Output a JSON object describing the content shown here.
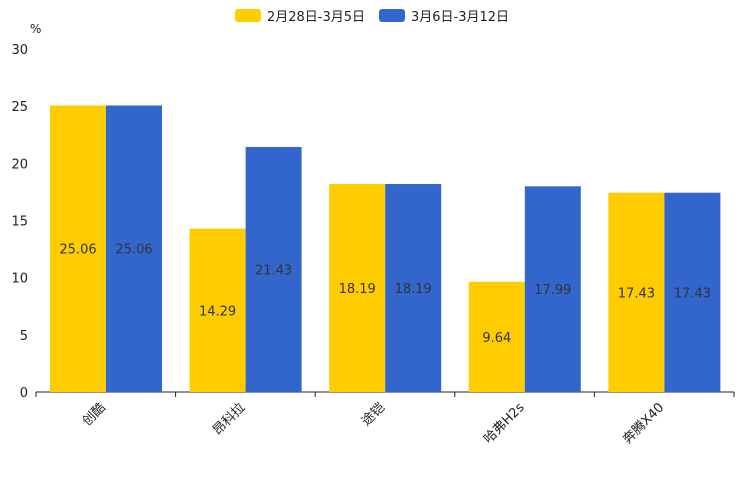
{
  "chart_data": {
    "type": "bar",
    "title": "",
    "xlabel": "",
    "ylabel": "%",
    "ylim": [
      0,
      30
    ],
    "yticks": [
      0,
      5,
      10,
      15,
      20,
      25,
      30
    ],
    "categories": [
      "创酷",
      "昂科拉",
      "途铠",
      "哈弗H2s",
      "奔腾X40"
    ],
    "series": [
      {
        "name": "2月28日-3月5日",
        "color": "#FFCC00",
        "values": [
          25.06,
          14.29,
          18.19,
          9.64,
          17.43
        ]
      },
      {
        "name": "3月6日-3月12日",
        "color": "#3366CC",
        "values": [
          25.06,
          21.43,
          18.19,
          17.99,
          17.43
        ]
      }
    ],
    "legend_position": "top-center",
    "grid": false
  }
}
